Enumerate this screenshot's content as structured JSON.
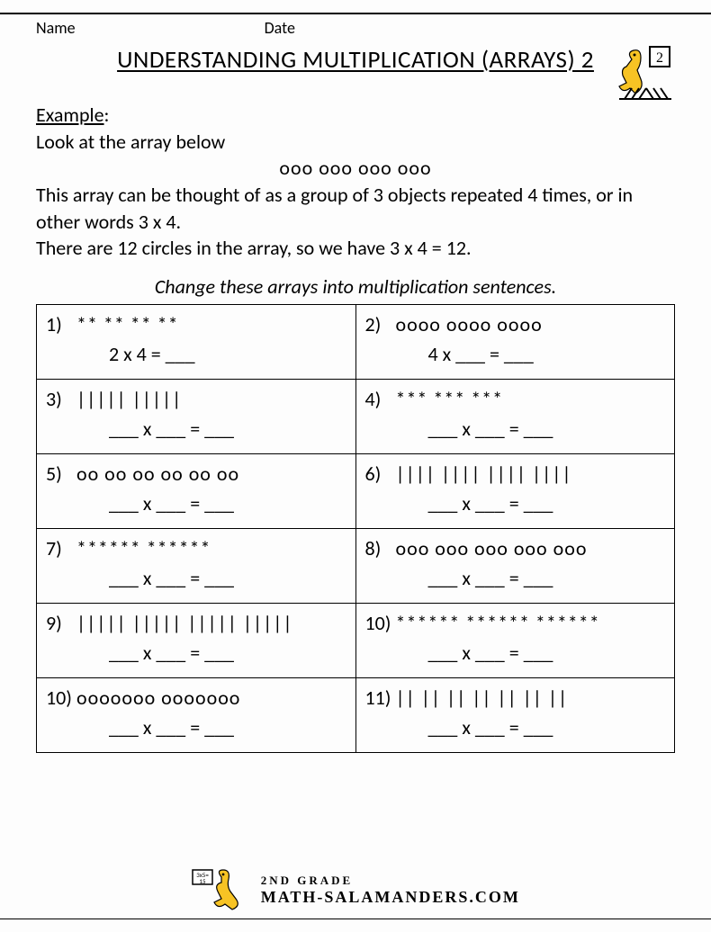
{
  "header": {
    "name_label": "Name",
    "date_label": "Date",
    "title": "UNDERSTANDING MULTIPLICATION (ARRAYS) 2",
    "grade_number": "2"
  },
  "example": {
    "label": "Example",
    "line1": "Look at the array below",
    "array_text": "ooo   ooo   ooo   ooo",
    "line2": "This array can be thought of as a group of 3 objects repeated 4 times, or in other words 3 x 4.",
    "line3": "There are 12 circles in the array, so we have 3 x 4 = 12."
  },
  "instruction": "Change these arrays into multiplication sentences.",
  "problems": [
    {
      "num": "1)",
      "array": "**   **   **   **",
      "eq": "2 x 4 = ___"
    },
    {
      "num": "2)",
      "array": "oooo   oooo   oooo",
      "eq": "4 x ___ = ___"
    },
    {
      "num": "3)",
      "array": "|||||   |||||",
      "eq": "___ x ___ = ___"
    },
    {
      "num": "4)",
      "array": "***   ***   ***",
      "eq": "___ x ___ = ___"
    },
    {
      "num": "5)",
      "array": "oo  oo  oo  oo  oo  oo",
      "eq": "___ x ___ = ___"
    },
    {
      "num": "6)",
      "array": "||||  ||||  ||||  ||||",
      "eq": "___ x ___ = ___"
    },
    {
      "num": "7)",
      "array": "******   ******",
      "eq": "___ x ___ = ___"
    },
    {
      "num": "8)",
      "array": "ooo  ooo  ooo  ooo  ooo",
      "eq": "___ x ___ = ___"
    },
    {
      "num": "9)",
      "array": "|||||  |||||  |||||  |||||",
      "eq": "___ x ___ = ___"
    },
    {
      "num": "10)",
      "array": "******  ******  ******",
      "eq": "___ x ___ = ___"
    },
    {
      "num": "10)",
      "array": "ooooooo  ooooooo",
      "eq": "___ x ___ = ___"
    },
    {
      "num": "11)",
      "array": "|| || || || || || ||",
      "eq": "___ x ___ = ___"
    }
  ],
  "footer": {
    "grade": "2ND GRADE",
    "brand": "MATH-SALAMANDERS.COM"
  },
  "colors": {
    "page_bg": "#fdfdfd",
    "text": "#000000",
    "salamander_body": "#f7c324",
    "salamander_dark": "#000000"
  }
}
